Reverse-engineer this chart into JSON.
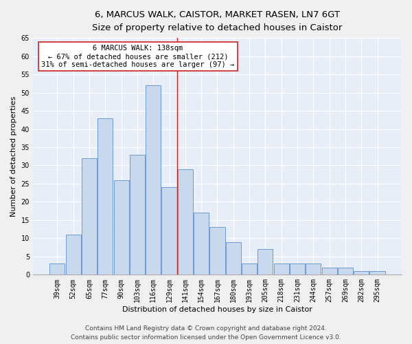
{
  "title1": "6, MARCUS WALK, CAISTOR, MARKET RASEN, LN7 6GT",
  "title2": "Size of property relative to detached houses in Caistor",
  "xlabel": "Distribution of detached houses by size in Caistor",
  "ylabel": "Number of detached properties",
  "categories": [
    "39sqm",
    "52sqm",
    "65sqm",
    "77sqm",
    "90sqm",
    "103sqm",
    "116sqm",
    "129sqm",
    "141sqm",
    "154sqm",
    "167sqm",
    "180sqm",
    "193sqm",
    "205sqm",
    "218sqm",
    "231sqm",
    "244sqm",
    "257sqm",
    "269sqm",
    "282sqm",
    "295sqm"
  ],
  "values": [
    3,
    11,
    32,
    43,
    26,
    33,
    52,
    24,
    29,
    17,
    13,
    9,
    3,
    7,
    3,
    3,
    3,
    2,
    2,
    1,
    1
  ],
  "bar_color": "#c8d9ee",
  "bar_edge_color": "#5b8fcc",
  "bg_color": "#e8eef8",
  "grid_color": "#ffffff",
  "property_line_x": 7.5,
  "property_line_color": "#cc2222",
  "annotation_line1": "6 MARCUS WALK: 138sqm",
  "annotation_line2": "← 67% of detached houses are smaller (212)",
  "annotation_line3": "31% of semi-detached houses are larger (97) →",
  "annotation_box_color": "#cc2222",
  "ylim": [
    0,
    65
  ],
  "yticks": [
    0,
    5,
    10,
    15,
    20,
    25,
    30,
    35,
    40,
    45,
    50,
    55,
    60,
    65
  ],
  "footer1": "Contains HM Land Registry data © Crown copyright and database right 2024.",
  "footer2": "Contains public sector information licensed under the Open Government Licence v3.0.",
  "title_fontsize": 9.5,
  "subtitle_fontsize": 8.5,
  "tick_fontsize": 7,
  "ylabel_fontsize": 8,
  "xlabel_fontsize": 8,
  "annotation_fontsize": 7.5,
  "footer_fontsize": 6.5
}
